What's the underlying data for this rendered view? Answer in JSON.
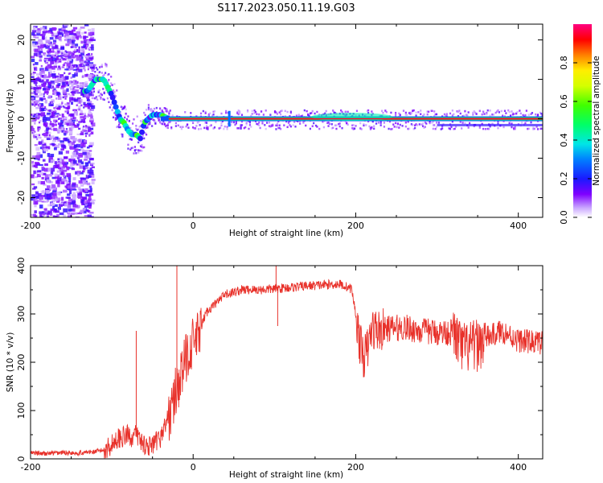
{
  "title": "S117.2023.050.11.19.G03",
  "chart_data": [
    {
      "type": "heatmap",
      "xlabel": "Height of straight line (km)",
      "ylabel": "Frequency (Hz)",
      "xlim": [
        -200,
        430
      ],
      "ylim": [
        -25,
        24
      ],
      "x_ticks": [
        "-200",
        "0",
        "200",
        "400"
      ],
      "y_ticks": [
        "-20",
        "-10",
        "0",
        "10",
        "20"
      ],
      "colorbar": {
        "label": "Normalized spectral amplitude",
        "range": [
          0.0,
          1.0
        ],
        "ticks": [
          "0.0",
          "0.2",
          "0.4",
          "0.6",
          "0.8"
        ]
      },
      "ridge": {
        "x": [
          -130,
          -120,
          -110,
          -100,
          -95,
          -90,
          -85,
          -80,
          -75,
          -70,
          -65,
          -60,
          -50,
          -40,
          -30,
          0,
          50,
          150,
          200,
          250,
          300,
          350,
          430
        ],
        "frequency": [
          7,
          10,
          10,
          6,
          3,
          0,
          -1,
          -3,
          -4,
          -4,
          -5,
          -1,
          1,
          1,
          0,
          0,
          0,
          0,
          0,
          0,
          0,
          0,
          0
        ]
      }
    },
    {
      "type": "line",
      "xlabel": "Height of straight line (km)",
      "ylabel": "SNR (10 * v/v)",
      "xlim": [
        -200,
        430
      ],
      "ylim": [
        0,
        400
      ],
      "x_ticks": [
        "-200",
        "0",
        "200",
        "400"
      ],
      "y_ticks": [
        "0",
        "100",
        "200",
        "300",
        "400"
      ],
      "series": [
        {
          "color": "#e8312a",
          "x": [
            -200,
            -180,
            -160,
            -140,
            -120,
            -110,
            -100,
            -95,
            -90,
            -85,
            -80,
            -75,
            -70,
            -65,
            -60,
            -50,
            -40,
            -30,
            -25,
            -20,
            -15,
            -10,
            -5,
            0,
            5,
            10,
            15,
            20,
            30,
            40,
            60,
            80,
            100,
            120,
            140,
            160,
            180,
            195,
            200,
            205,
            210,
            215,
            220,
            230,
            240,
            260,
            280,
            300,
            320,
            330,
            340,
            350,
            360,
            380,
            400,
            430
          ],
          "y": [
            12,
            11,
            13,
            12,
            15,
            18,
            30,
            40,
            45,
            45,
            50,
            45,
            50,
            40,
            30,
            25,
            45,
            90,
            110,
            150,
            170,
            200,
            230,
            240,
            250,
            270,
            300,
            310,
            325,
            340,
            350,
            350,
            352,
            355,
            358,
            360,
            362,
            352,
            300,
            240,
            210,
            230,
            270,
            265,
            270,
            272,
            265,
            262,
            262,
            230,
            230,
            235,
            250,
            265,
            245,
            240
          ]
        }
      ]
    }
  ]
}
